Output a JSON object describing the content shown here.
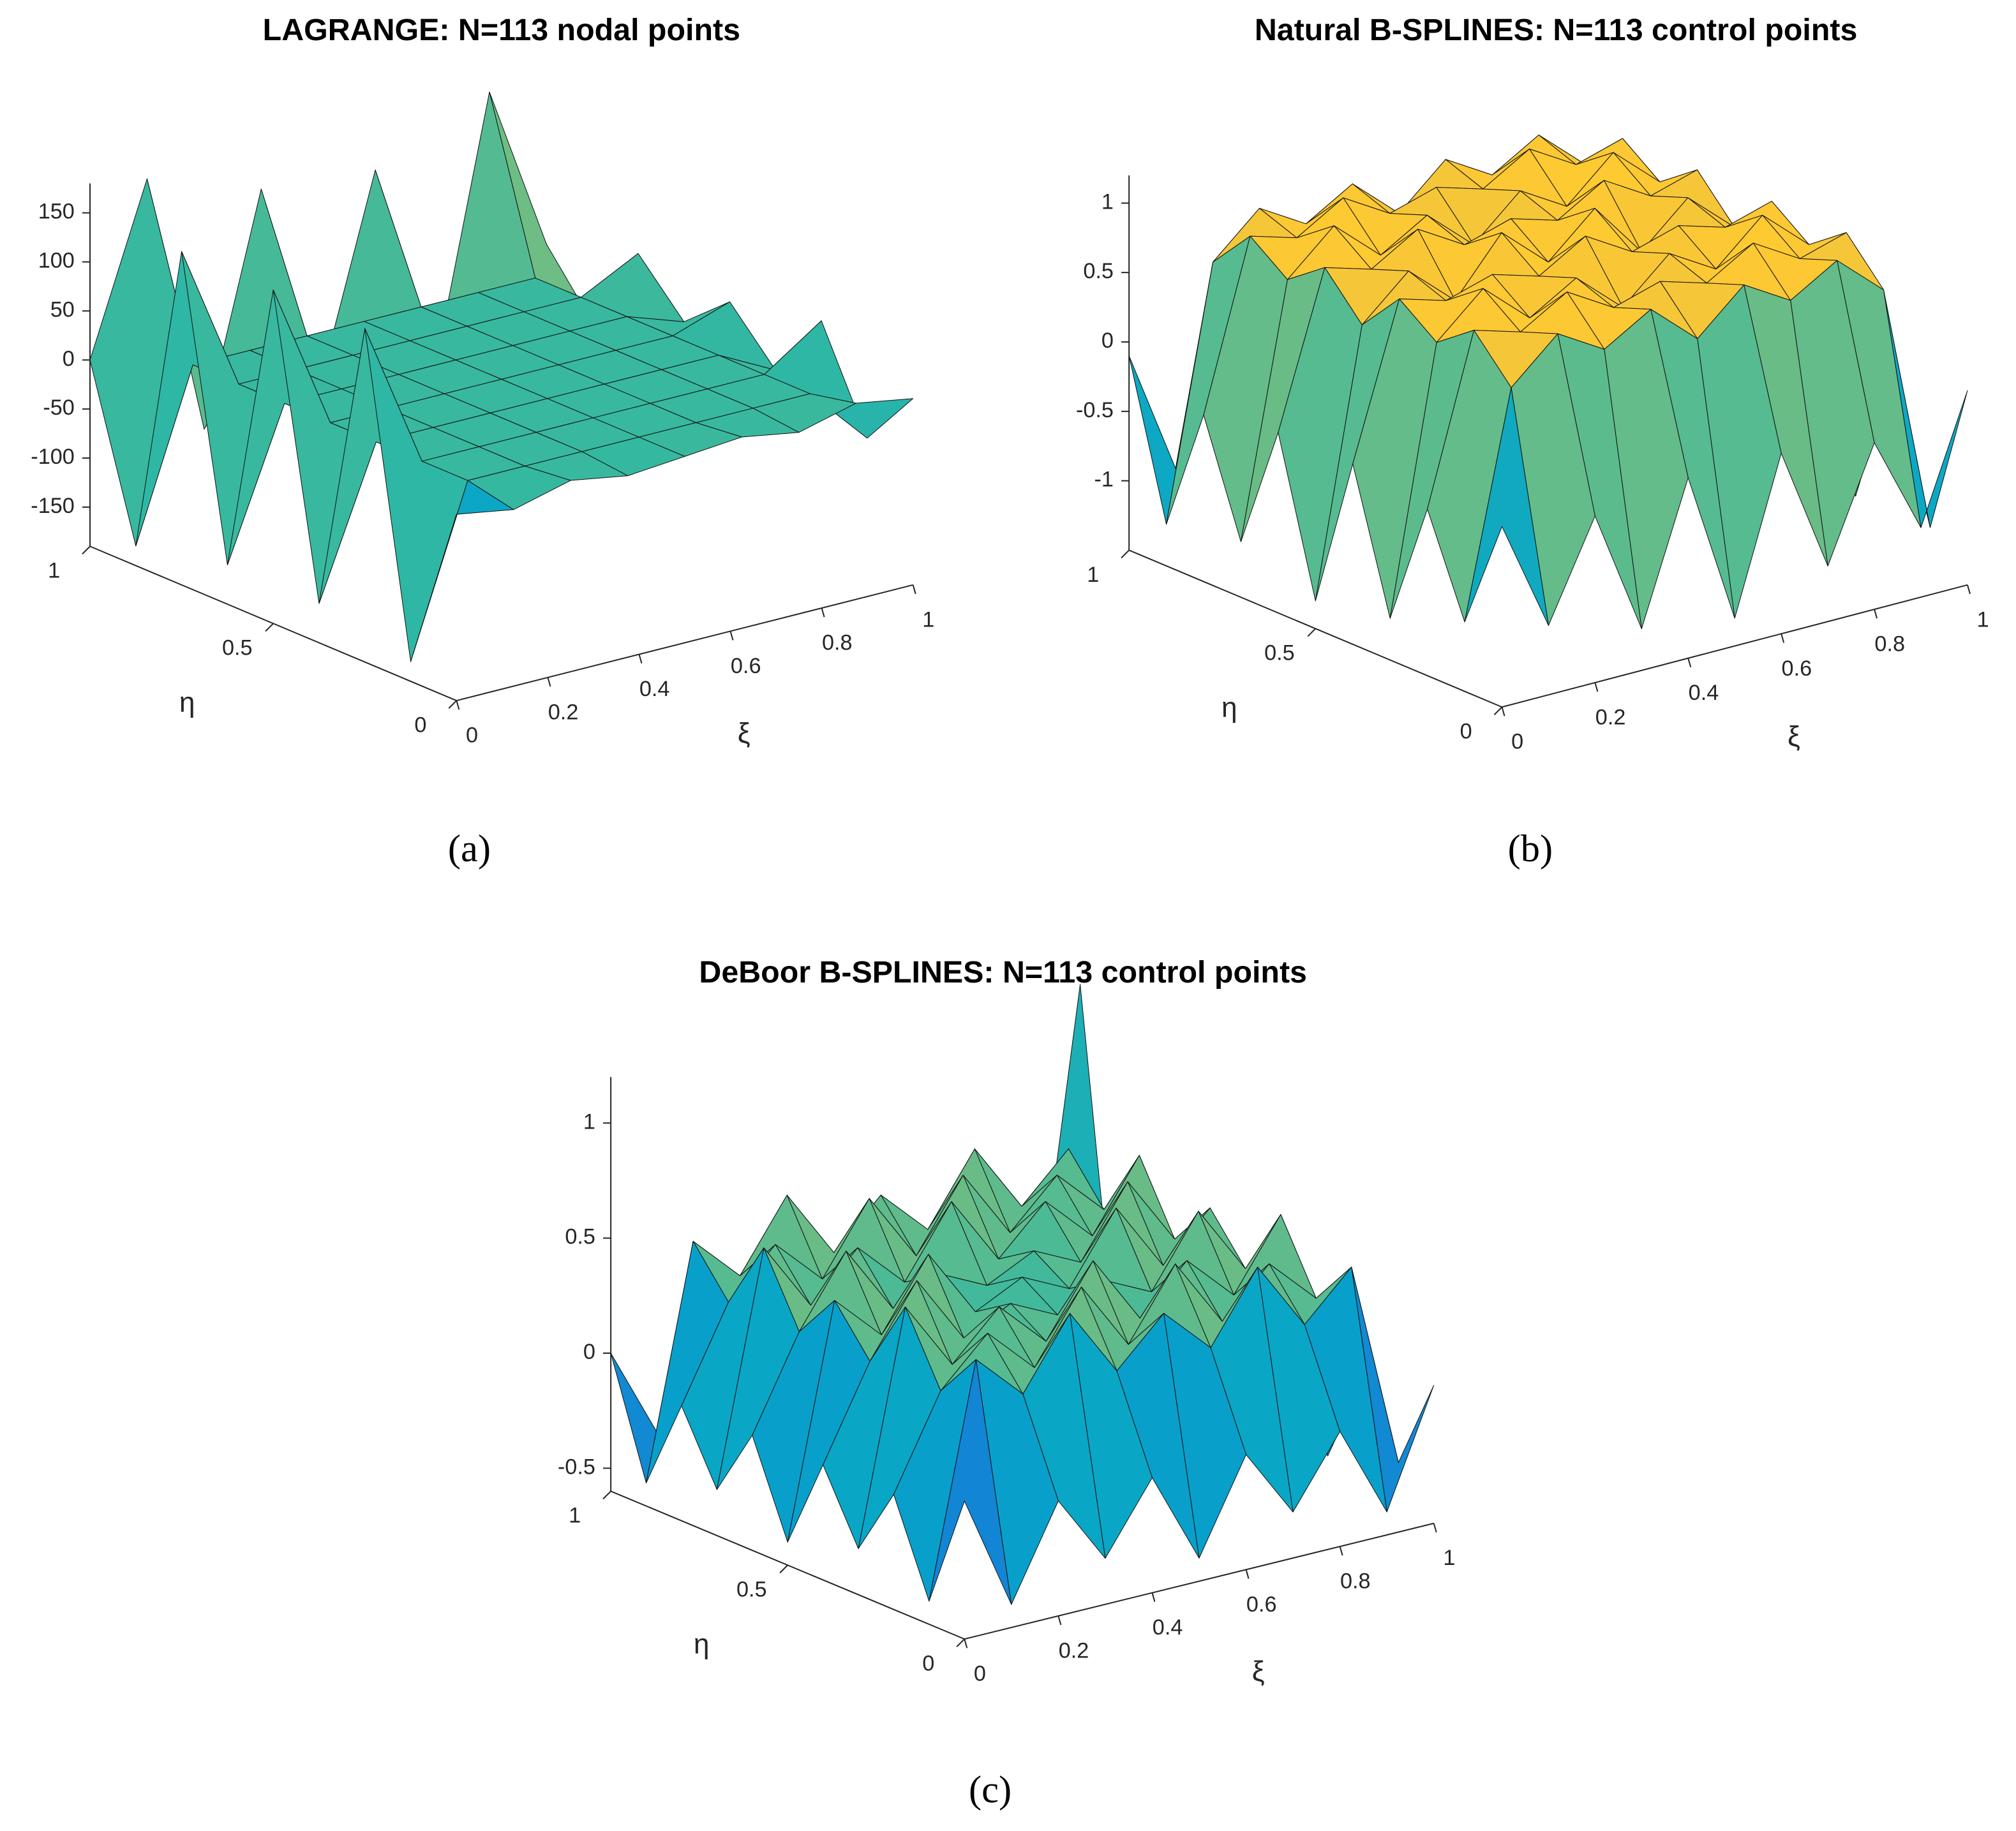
{
  "chart_data": [
    {
      "type": "surface",
      "title": "LAGRANGE: N=113 nodal points",
      "caption": "(a)",
      "xlabel": "ξ",
      "ylabel": "η",
      "colormap": "parula",
      "grid": false,
      "xlim": [
        0,
        1
      ],
      "xticks": [
        0,
        0.2,
        0.4,
        0.6,
        0.8,
        1
      ],
      "ylim": [
        0,
        1
      ],
      "yticks": [
        0,
        0.5,
        1
      ],
      "zlim": [
        -190,
        180
      ],
      "zticks": [
        -150,
        -100,
        -50,
        0,
        50,
        100,
        150
      ],
      "z": [
        [
          0,
          -10,
          5,
          -5,
          0,
          5,
          -5,
          10,
          0
        ],
        [
          -170,
          0,
          0,
          0,
          0,
          0,
          0,
          0,
          -60
        ],
        [
          150,
          0,
          0,
          0,
          0,
          0,
          0,
          0,
          40
        ],
        [
          -150,
          0,
          0,
          0,
          0,
          0,
          0,
          0,
          -30
        ],
        [
          150,
          0,
          0,
          0,
          0,
          0,
          0,
          0,
          20
        ],
        [
          -150,
          0,
          0,
          0,
          0,
          0,
          0,
          0,
          -20
        ],
        [
          150,
          0,
          0,
          0,
          0,
          0,
          0,
          0,
          30
        ],
        [
          -170,
          0,
          0,
          0,
          0,
          0,
          0,
          0,
          -60
        ],
        [
          0,
          170,
          -100,
          130,
          -90,
          120,
          -110,
          170,
          0
        ]
      ]
    },
    {
      "type": "surface",
      "title": "Natural B-SPLINES: N=113 control points",
      "caption": "(b)",
      "xlabel": "ξ",
      "ylabel": "η",
      "colormap": "parula",
      "grid": false,
      "xlim": [
        0,
        1
      ],
      "xticks": [
        0,
        0.2,
        0.4,
        0.6,
        0.8,
        1
      ],
      "ylim": [
        0,
        1
      ],
      "yticks": [
        0,
        0.5,
        1
      ],
      "zlim": [
        -1.5,
        1.2
      ],
      "zticks": [
        -1,
        -0.5,
        0,
        0.5,
        1
      ],
      "z": [
        [
          -0.2,
          -1.0,
          -0.3,
          -1.2,
          -0.2,
          -1.3,
          -0.2,
          -1.1,
          -0.3,
          -1.0,
          -0.1
        ],
        [
          -1.0,
          0.6,
          0.9,
          0.7,
          0.9,
          0.6,
          0.9,
          0.7,
          0.9,
          0.6,
          -1.2
        ],
        [
          -0.3,
          0.9,
          0.8,
          1.0,
          0.8,
          0.9,
          0.8,
          1.0,
          0.8,
          0.9,
          -0.2
        ],
        [
          -1.2,
          0.7,
          1.0,
          0.7,
          0.9,
          0.6,
          0.9,
          0.7,
          1.0,
          0.7,
          -1.2
        ],
        [
          -0.2,
          0.9,
          0.8,
          0.9,
          0.8,
          1.0,
          0.8,
          0.9,
          0.8,
          0.9,
          -0.3
        ],
        [
          -1.3,
          0.6,
          0.9,
          0.6,
          1.0,
          0.7,
          1.0,
          0.6,
          0.9,
          0.6,
          -1.1
        ],
        [
          -0.2,
          0.9,
          0.8,
          1.0,
          0.8,
          0.9,
          0.8,
          1.0,
          0.8,
          0.9,
          -0.3
        ],
        [
          -1.1,
          0.7,
          1.0,
          0.7,
          0.9,
          0.6,
          0.9,
          0.7,
          1.0,
          0.7,
          -1.2
        ],
        [
          -0.3,
          0.9,
          0.8,
          1.0,
          0.8,
          0.9,
          0.8,
          1.0,
          0.8,
          0.9,
          -0.2
        ],
        [
          -1.2,
          0.6,
          0.9,
          0.7,
          0.9,
          0.6,
          0.9,
          0.7,
          0.9,
          0.6,
          -1.0
        ],
        [
          -0.1,
          -1.0,
          -0.3,
          -1.1,
          -0.2,
          -1.2,
          -0.2,
          -1.1,
          -0.3,
          -1.0,
          0.2
        ]
      ]
    },
    {
      "type": "surface",
      "title": "DeBoor B-SPLINES: N=113 control points",
      "caption": "(c)",
      "xlabel": "ξ",
      "ylabel": "η",
      "colormap": "parula",
      "grid": false,
      "xlim": [
        0,
        1
      ],
      "xticks": [
        0,
        0.2,
        0.4,
        0.6,
        0.8,
        1
      ],
      "ylim": [
        0,
        1
      ],
      "yticks": [
        0,
        0.5,
        1
      ],
      "zlim": [
        -0.6,
        1.2
      ],
      "zticks": [
        -0.5,
        0,
        0.5,
        1
      ],
      "z": [
        [
          0.0,
          -0.5,
          -0.1,
          -0.4,
          -0.1,
          -0.5,
          -0.1,
          -0.4,
          -0.1,
          -0.5,
          0.0
        ],
        [
          -0.5,
          0.5,
          0.3,
          0.6,
          0.3,
          0.5,
          0.3,
          0.6,
          0.3,
          0.5,
          -0.4
        ],
        [
          -0.1,
          0.3,
          0.5,
          0.3,
          0.6,
          0.3,
          0.6,
          0.3,
          0.5,
          0.3,
          -0.1
        ],
        [
          -0.4,
          0.6,
          0.3,
          0.5,
          0.3,
          0.6,
          0.3,
          0.5,
          0.3,
          0.6,
          -0.5
        ],
        [
          -0.1,
          0.3,
          0.6,
          0.3,
          0.4,
          0.3,
          0.4,
          0.3,
          0.6,
          0.3,
          -0.1
        ],
        [
          -0.5,
          0.5,
          0.3,
          0.6,
          0.3,
          0.4,
          0.3,
          0.6,
          0.3,
          0.5,
          -0.4
        ],
        [
          -0.1,
          0.3,
          0.6,
          0.3,
          0.4,
          0.3,
          0.4,
          0.3,
          0.6,
          0.3,
          -0.1
        ],
        [
          -0.4,
          0.6,
          0.3,
          0.5,
          0.3,
          0.6,
          0.3,
          0.5,
          0.3,
          0.6,
          -0.5
        ],
        [
          -0.1,
          0.3,
          0.5,
          0.3,
          0.6,
          0.3,
          0.6,
          0.3,
          0.5,
          0.3,
          -0.1
        ],
        [
          -0.5,
          0.5,
          0.3,
          0.6,
          0.3,
          0.5,
          0.3,
          0.6,
          0.3,
          0.5,
          -0.4
        ],
        [
          0.0,
          -0.4,
          -0.1,
          -0.5,
          -0.1,
          -0.4,
          -0.1,
          -0.5,
          -0.1,
          -0.4,
          1.1
        ]
      ]
    }
  ]
}
